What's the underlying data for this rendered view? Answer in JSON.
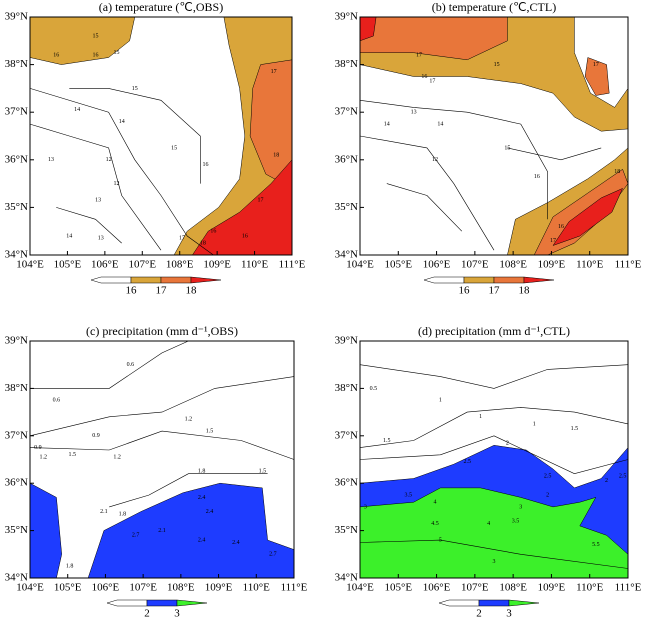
{
  "panels": [
    {
      "title": "(a) temperature (℃,OBS)",
      "xlim": [
        104,
        111
      ],
      "ylim": [
        34,
        39
      ],
      "colorbar": {
        "levels": [
          16,
          17,
          18
        ],
        "colors": [
          "#d9a53a",
          "#e8763a",
          "#e8201c"
        ]
      },
      "contour_labels": [
        "16",
        "15",
        "15",
        "16",
        "15",
        "14",
        "14",
        "13",
        "12",
        "13",
        "12",
        "14",
        "13",
        "15",
        "16",
        "17",
        "18",
        "17",
        "16",
        "17",
        "18",
        "16"
      ]
    },
    {
      "title": "(b) temperature (℃,CTL)",
      "xlim": [
        104,
        111
      ],
      "ylim": [
        34,
        39
      ],
      "colorbar": {
        "levels": [
          16,
          17,
          18
        ],
        "colors": [
          "#d9a53a",
          "#e8763a",
          "#e8201c"
        ]
      },
      "contour_labels": [
        "17",
        "16",
        "17",
        "17",
        "15",
        "14",
        "13",
        "14",
        "12",
        "15",
        "16",
        "18",
        "16",
        "17"
      ]
    },
    {
      "title": "(c) precipitation (mm d⁻¹,OBS)",
      "xlim": [
        104,
        111
      ],
      "ylim": [
        34,
        39
      ],
      "colorbar": {
        "levels": [
          2,
          3
        ],
        "colors": [
          "#1e3cff",
          "#3cf02a"
        ]
      },
      "contour_labels": [
        "0.6",
        "0.6",
        "0.9",
        "1.2",
        "1.5",
        "0.9",
        "1.2",
        "1.5",
        "1.2",
        "1.8",
        "1.5",
        "1.8",
        "2.1",
        "2.4",
        "2.4",
        "2.1",
        "2.4",
        "2.7",
        "2.4",
        "2.7",
        "1.8"
      ]
    },
    {
      "title": "(d) precipitation (mm d⁻¹,CTL)",
      "xlim": [
        104,
        111
      ],
      "ylim": [
        34,
        39
      ],
      "colorbar": {
        "levels": [
          2,
          3
        ],
        "colors": [
          "#1e3cff",
          "#3cf02a"
        ]
      },
      "contour_labels": [
        "0.5",
        "1",
        "1",
        "1",
        "1.5",
        "1.5",
        "2",
        "2.5",
        "2.5",
        "2",
        "2.5",
        "3",
        "3.5",
        "4",
        "3",
        "4.5",
        "5",
        "2",
        "3.5",
        "4",
        "5.5",
        "3"
      ]
    }
  ],
  "xticks": [
    {
      "value": 104,
      "label": "104°E"
    },
    {
      "value": 105,
      "label": "105°E"
    },
    {
      "value": 106,
      "label": "106°E"
    },
    {
      "value": 107,
      "label": "107°E"
    },
    {
      "value": 108,
      "label": "108°E"
    },
    {
      "value": 109,
      "label": "109°E"
    },
    {
      "value": 110,
      "label": "110°E"
    },
    {
      "value": 111,
      "label": "111°E"
    }
  ],
  "yticks": [
    {
      "value": 34,
      "label": "34°N"
    },
    {
      "value": 35,
      "label": "35°N"
    },
    {
      "value": 36,
      "label": "36°N"
    },
    {
      "value": 37,
      "label": "37°N"
    },
    {
      "value": 38,
      "label": "38°N"
    },
    {
      "value": 39,
      "label": "39°N"
    }
  ]
}
